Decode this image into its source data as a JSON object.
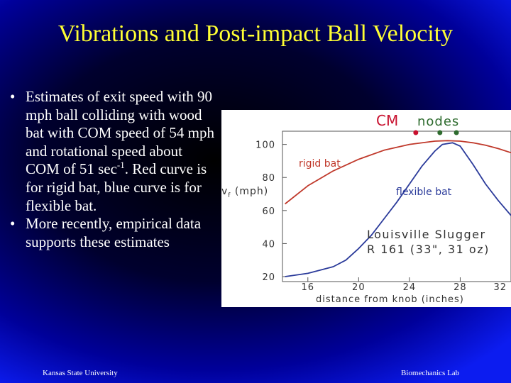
{
  "slide": {
    "title": "Vibrations and Post-impact Ball Velocity",
    "bullets": [
      {
        "pre": "Estimates of exit speed with 90 mph ball colliding with wood bat with COM speed of 54 mph and rotational speed about COM of 51 sec",
        "sup": "-1",
        "post": ".  Red curve is for rigid bat, blue curve is for flexible bat."
      },
      {
        "pre": "More recently, empirical data supports these estimates",
        "sup": "",
        "post": ""
      }
    ],
    "footer_left": "Kansas State University",
    "footer_right": "Biomechanics Lab"
  },
  "chart_data": {
    "type": "line",
    "title": "",
    "xlabel": "distance from knob (inches)",
    "ylabel_main": "v",
    "ylabel_sub": "f",
    "ylabel_unit": " (mph)",
    "xlim": [
      14,
      32
    ],
    "ylim": [
      17,
      108
    ],
    "xticks": [
      16,
      20,
      24,
      28,
      32
    ],
    "yticks": [
      20,
      40,
      60,
      80,
      100
    ],
    "grid": false,
    "markers": {
      "cm_label": "CM",
      "nodes_label": "nodes",
      "cm_x": 24.5,
      "nodes_x": [
        26.4,
        27.7
      ],
      "cm_color": "#c8102e",
      "nodes_color": "#2e6b2e"
    },
    "annotations": {
      "bat_line1": "Louisville Slugger",
      "bat_line2": "R 161 (33\", 31 oz)"
    },
    "series": [
      {
        "name": "rigid bat",
        "color": "#c0392b",
        "x": [
          14.2,
          16,
          18,
          20,
          22,
          24,
          26,
          27,
          28,
          29,
          30,
          31,
          32
        ],
        "values": [
          64,
          75,
          84,
          91,
          96.5,
          100,
          102,
          102.3,
          102,
          101,
          99.5,
          97.5,
          95
        ]
      },
      {
        "name": "flexible bat",
        "color": "#2a3a9a",
        "x": [
          14.2,
          16,
          18,
          19,
          20,
          21,
          22,
          23,
          24,
          25,
          26,
          26.6,
          27.4,
          28,
          29,
          30,
          31,
          32
        ],
        "values": [
          20,
          22,
          26,
          30,
          37,
          45,
          55,
          65,
          76,
          87,
          96,
          100,
          101,
          99,
          88,
          76,
          66,
          57
        ]
      }
    ]
  }
}
